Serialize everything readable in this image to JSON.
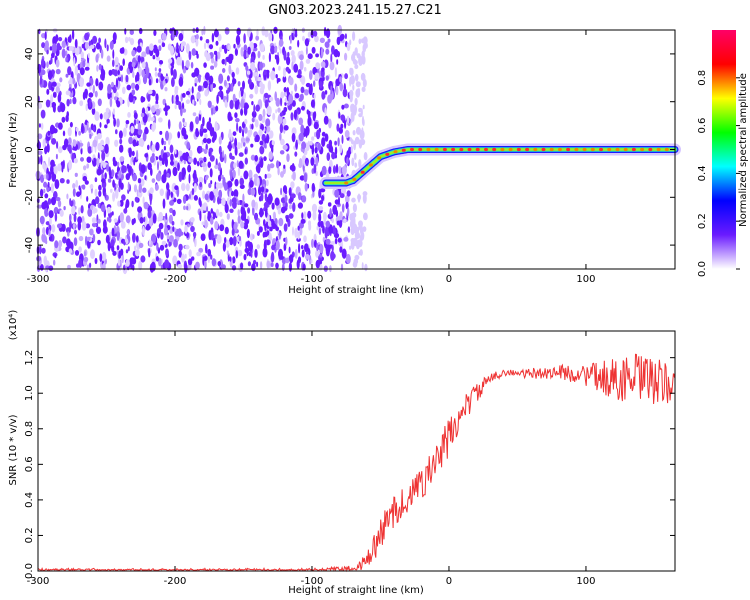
{
  "title": "GN03.2023.241.15.27.C21",
  "chart_data": [
    {
      "type": "heatmap",
      "title": "",
      "xlabel": "Height of straight line (km)",
      "ylabel": "Frequency (Hz)",
      "xlim": [
        -300,
        165
      ],
      "ylim": [
        -50,
        50
      ],
      "x_ticks": [
        -300,
        -200,
        -100,
        0,
        100
      ],
      "y_ticks": [
        -40,
        -20,
        0,
        20,
        40
      ],
      "noise_region_x": [
        -300,
        -65
      ],
      "signal_ridge": {
        "x": [
          -90,
          -75,
          -70,
          -60,
          -50,
          -40,
          -30,
          -20,
          0,
          50,
          100,
          130,
          150,
          165
        ],
        "frequency_hz": [
          -14,
          -14,
          -13,
          -8,
          -3,
          -1,
          0,
          0,
          0,
          0,
          0,
          0,
          0,
          0
        ]
      },
      "colorbar": {
        "label": "Normalized spectral amplitude",
        "range": [
          0.0,
          1.0
        ],
        "ticks": [
          0.0,
          0.2,
          0.4,
          0.6,
          0.8
        ],
        "colormap": [
          "#ffffff",
          "#6a1bff",
          "#0000ff",
          "#00ffff",
          "#00ff00",
          "#ffff00",
          "#ff0000",
          "#ff0066"
        ]
      }
    },
    {
      "type": "line",
      "title": "",
      "xlabel": "Height of straight line (km)",
      "ylabel": "SNR (10 * v/v)",
      "y_scale_label": "(x10⁴)",
      "xlim": [
        -300,
        165
      ],
      "ylim": [
        0.0,
        1.35
      ],
      "x_ticks": [
        -300,
        -200,
        -100,
        0,
        100
      ],
      "y_ticks": [
        0.0,
        0.2,
        0.4,
        0.6,
        0.8,
        1.0,
        1.2
      ],
      "line_color": "#ee3333",
      "series": [
        {
          "x": [
            -300,
            -200,
            -100,
            -70,
            -60,
            -50,
            -40,
            -30,
            -20,
            -10,
            0,
            10,
            20,
            30,
            40,
            50,
            60,
            80,
            100,
            120,
            140,
            160,
            165
          ],
          "values": [
            0.005,
            0.005,
            0.005,
            0.01,
            0.05,
            0.2,
            0.35,
            0.4,
            0.5,
            0.6,
            0.75,
            0.9,
            1.0,
            1.08,
            1.12,
            1.11,
            1.11,
            1.12,
            1.1,
            1.08,
            1.08,
            1.05,
            1.05
          ],
          "noise_amplitude": [
            0.01,
            0.01,
            0.01,
            0.02,
            0.05,
            0.1,
            0.1,
            0.08,
            0.1,
            0.1,
            0.12,
            0.08,
            0.06,
            0.03,
            0.02,
            0.02,
            0.03,
            0.04,
            0.06,
            0.12,
            0.15,
            0.12,
            0.1
          ]
        }
      ]
    }
  ]
}
